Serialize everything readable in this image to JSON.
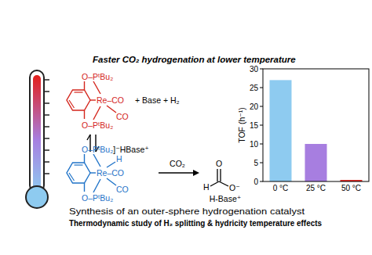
{
  "chart_data": {
    "type": "bar",
    "categories": [
      "0 °C",
      "25 °C",
      "50 °C"
    ],
    "values": [
      27,
      10,
      0.4
    ],
    "colors": [
      "#8ecbf0",
      "#a77ee0",
      "#e3201b"
    ],
    "ylim": [
      0,
      30
    ],
    "yticks": [
      0,
      5,
      10,
      15,
      20,
      25,
      30
    ],
    "y_label": "TOF (h⁻¹)"
  },
  "header": {
    "title": "Faster CO₂ hydrogenation at lower temperature"
  },
  "scheme": {
    "top_complex": {
      "upper_arm": "O–PᵗBu₂",
      "metal": "Re–CO",
      "lower_co": "CO",
      "lower_arm": "O–PᵗBu₂"
    },
    "reagents": "+ Base + H₂",
    "bottom_complex": {
      "upper_arm": "O–PᵗBu₂",
      "counter_ion": "]⁻HBase⁺",
      "hydride": "H",
      "metal": "Re–CO",
      "lower_co": "CO",
      "lower_arm": "O–PᵗBu₂"
    },
    "co2": "CO₂",
    "product": {
      "hydrogen": "H",
      "carbonyl_o": "O",
      "anion_o": "O⁻",
      "cation": "H-Base⁺"
    }
  },
  "captions": [
    "Synthesis of an outer-sphere hydrogenation catalyst",
    "Thermodynamic study of H₂ splitting & hydricity temperature effects"
  ]
}
